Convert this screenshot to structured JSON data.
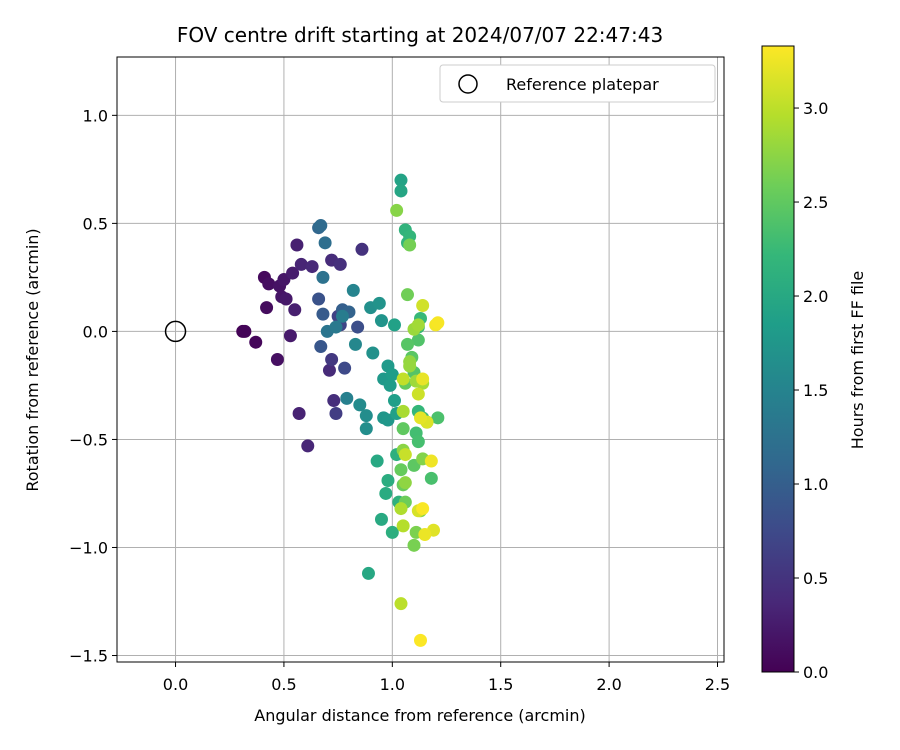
{
  "chart_data": {
    "type": "scatter",
    "title": "FOV centre drift starting at 2024/07/07 22:47:43",
    "xlabel": "Angular distance from reference (arcmin)",
    "ylabel": "Rotation from reference (arcmin)",
    "xlim": [
      -0.27,
      2.53
    ],
    "ylim": [
      -1.53,
      1.27
    ],
    "xticks": [
      0.0,
      0.5,
      1.0,
      1.5,
      2.0,
      2.5
    ],
    "xtick_labels": [
      "0.0",
      "0.5",
      "1.0",
      "1.5",
      "2.0",
      "2.5"
    ],
    "yticks": [
      -1.5,
      -1.0,
      -0.5,
      0.0,
      0.5,
      1.0
    ],
    "ytick_labels": [
      "−1.5",
      "−1.0",
      "−0.5",
      "0.0",
      "0.5",
      "1.0"
    ],
    "grid": true,
    "legend": {
      "placement": "top-right",
      "entries": [
        "Reference platepar"
      ]
    },
    "reference_point": {
      "x": 0.0,
      "y": 0.0
    },
    "colorbar": {
      "label": "Hours from first FF file",
      "range": [
        0.0,
        3.33
      ],
      "ticks": [
        0.0,
        0.5,
        1.0,
        1.5,
        2.0,
        2.5,
        3.0
      ],
      "tick_labels": [
        "0.0",
        "0.5",
        "1.0",
        "1.5",
        "2.0",
        "2.5",
        "3.0"
      ],
      "colormap": "viridis",
      "colors": [
        "#440154",
        "#482878",
        "#3e4989",
        "#31688e",
        "#26828e",
        "#1f9e89",
        "#35b779",
        "#6ece58",
        "#b5de2b",
        "#fde725"
      ]
    },
    "series": [
      {
        "points": [
          [
            0.31,
            0.0,
            0.02
          ],
          [
            0.32,
            0.0,
            0.04
          ],
          [
            0.37,
            -0.05,
            0.06
          ],
          [
            0.41,
            0.25,
            0.08
          ],
          [
            0.42,
            0.11,
            0.1
          ],
          [
            0.43,
            0.22,
            0.12
          ],
          [
            0.47,
            -0.13,
            0.14
          ],
          [
            0.48,
            0.21,
            0.16
          ],
          [
            0.49,
            0.16,
            0.18
          ],
          [
            0.5,
            0.24,
            0.2
          ],
          [
            0.51,
            0.15,
            0.22
          ],
          [
            0.53,
            -0.02,
            0.24
          ],
          [
            0.54,
            0.27,
            0.26
          ],
          [
            0.55,
            0.1,
            0.28
          ],
          [
            0.56,
            0.4,
            0.3
          ],
          [
            0.57,
            -0.38,
            0.32
          ],
          [
            0.58,
            0.31,
            0.34
          ],
          [
            0.61,
            -0.53,
            0.36
          ],
          [
            0.63,
            0.3,
            0.38
          ],
          [
            0.71,
            -0.18,
            0.4
          ],
          [
            0.72,
            0.33,
            0.42
          ],
          [
            0.73,
            -0.32,
            0.44
          ],
          [
            0.76,
            0.31,
            0.46
          ],
          [
            0.86,
            0.38,
            0.48
          ],
          [
            0.72,
            -0.13,
            0.55
          ],
          [
            0.74,
            -0.38,
            0.6
          ],
          [
            0.75,
            0.07,
            0.65
          ],
          [
            0.76,
            0.03,
            0.7
          ],
          [
            0.78,
            -0.17,
            0.75
          ],
          [
            0.84,
            0.02,
            0.8
          ],
          [
            0.66,
            0.15,
            0.85
          ],
          [
            0.67,
            -0.07,
            0.9
          ],
          [
            0.68,
            0.08,
            0.95
          ],
          [
            0.77,
            0.1,
            1.0
          ],
          [
            0.8,
            0.09,
            1.05
          ],
          [
            0.66,
            0.48,
            1.1
          ],
          [
            0.67,
            0.49,
            1.15
          ],
          [
            0.69,
            0.41,
            1.2
          ],
          [
            0.68,
            0.25,
            1.25
          ],
          [
            0.7,
            0.0,
            1.3
          ],
          [
            0.74,
            0.02,
            1.35
          ],
          [
            0.77,
            0.07,
            1.4
          ],
          [
            0.79,
            -0.31,
            1.45
          ],
          [
            0.82,
            0.19,
            1.5
          ],
          [
            0.83,
            -0.06,
            1.55
          ],
          [
            0.85,
            -0.34,
            1.6
          ],
          [
            0.88,
            -0.39,
            1.62
          ],
          [
            0.88,
            -0.45,
            1.64
          ],
          [
            0.9,
            0.11,
            1.66
          ],
          [
            0.91,
            -0.1,
            1.68
          ],
          [
            0.94,
            0.13,
            1.7
          ],
          [
            0.95,
            0.05,
            1.72
          ],
          [
            0.96,
            -0.4,
            1.74
          ],
          [
            0.98,
            -0.41,
            1.76
          ],
          [
            0.96,
            -0.22,
            1.78
          ],
          [
            0.98,
            -0.16,
            1.8
          ],
          [
            0.99,
            -0.25,
            1.82
          ],
          [
            1.0,
            -0.2,
            1.84
          ],
          [
            1.01,
            -0.32,
            1.86
          ],
          [
            1.02,
            -0.38,
            1.88
          ],
          [
            1.01,
            0.03,
            1.9
          ],
          [
            1.04,
            0.7,
            1.93
          ],
          [
            1.04,
            0.65,
            1.96
          ],
          [
            0.89,
            -1.12,
            1.98
          ],
          [
            0.93,
            -0.6,
            2.0
          ],
          [
            0.95,
            -0.87,
            2.02
          ],
          [
            0.97,
            -0.75,
            2.04
          ],
          [
            0.98,
            -0.69,
            2.06
          ],
          [
            1.0,
            -0.93,
            2.08
          ],
          [
            1.02,
            -0.57,
            2.1
          ],
          [
            1.03,
            -0.79,
            2.12
          ],
          [
            1.06,
            0.47,
            2.15
          ],
          [
            1.07,
            0.41,
            2.17
          ],
          [
            1.08,
            0.44,
            2.19
          ],
          [
            1.12,
            -0.37,
            2.21
          ],
          [
            1.13,
            0.06,
            2.23
          ],
          [
            1.12,
            0.02,
            2.25
          ],
          [
            1.14,
            -0.4,
            2.27
          ],
          [
            1.16,
            -0.42,
            2.29
          ],
          [
            1.11,
            -0.47,
            2.31
          ],
          [
            1.12,
            -0.51,
            2.33
          ],
          [
            1.18,
            -0.68,
            2.35
          ],
          [
            1.21,
            -0.4,
            2.37
          ],
          [
            1.12,
            -0.04,
            2.4
          ],
          [
            1.1,
            -0.19,
            2.42
          ],
          [
            1.07,
            -0.06,
            2.44
          ],
          [
            1.09,
            -0.12,
            2.46
          ],
          [
            1.1,
            -0.62,
            2.48
          ],
          [
            1.05,
            -0.45,
            2.5
          ],
          [
            1.06,
            -0.24,
            2.52
          ],
          [
            1.04,
            -0.64,
            2.54
          ],
          [
            1.05,
            -0.71,
            2.56
          ],
          [
            1.06,
            -0.79,
            2.58
          ],
          [
            1.07,
            0.17,
            2.6
          ],
          [
            1.08,
            0.4,
            2.62
          ],
          [
            1.1,
            -0.99,
            2.64
          ],
          [
            1.11,
            -0.93,
            2.66
          ],
          [
            1.13,
            -0.83,
            2.68
          ],
          [
            1.14,
            -0.59,
            2.7
          ],
          [
            1.02,
            0.56,
            2.72
          ],
          [
            1.05,
            -0.55,
            2.74
          ],
          [
            1.06,
            -0.7,
            2.76
          ],
          [
            1.08,
            -0.14,
            2.78
          ],
          [
            1.08,
            -0.16,
            2.8
          ],
          [
            1.1,
            0.01,
            2.82
          ],
          [
            1.11,
            -0.23,
            2.84
          ],
          [
            1.12,
            0.03,
            2.86
          ],
          [
            1.14,
            -0.24,
            2.88
          ],
          [
            1.05,
            -0.37,
            2.9
          ],
          [
            1.04,
            -0.82,
            2.93
          ],
          [
            1.05,
            -0.9,
            2.96
          ],
          [
            1.04,
            -1.26,
            2.99
          ],
          [
            1.05,
            -0.22,
            3.02
          ],
          [
            1.06,
            -0.57,
            3.05
          ],
          [
            1.12,
            -0.29,
            3.08
          ],
          [
            1.14,
            0.12,
            3.1
          ],
          [
            1.12,
            -0.83,
            3.13
          ],
          [
            1.16,
            -0.42,
            3.16
          ],
          [
            1.19,
            -0.92,
            3.18
          ],
          [
            1.13,
            -0.4,
            3.2
          ],
          [
            1.14,
            -0.22,
            3.22
          ],
          [
            1.15,
            -0.94,
            3.24
          ],
          [
            1.18,
            -0.6,
            3.26
          ],
          [
            1.2,
            0.03,
            3.28
          ],
          [
            1.21,
            0.04,
            3.3
          ],
          [
            1.13,
            -1.43,
            3.32
          ],
          [
            1.14,
            -0.82,
            3.31
          ]
        ]
      }
    ]
  }
}
